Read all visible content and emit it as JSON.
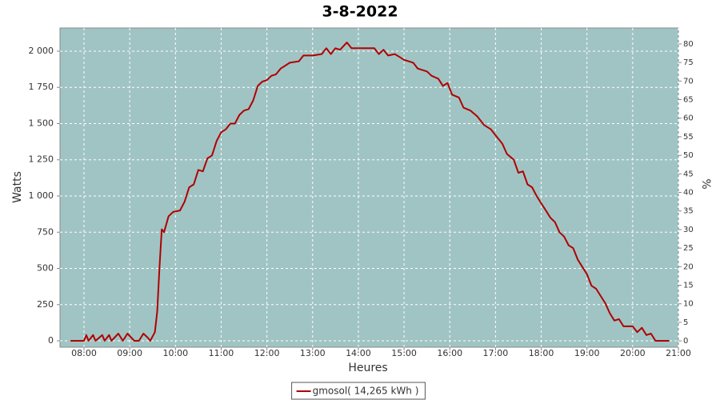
{
  "chart_data": {
    "type": "line",
    "title": "3-8-2022",
    "x_label": "Heures",
    "y_label": "Watts",
    "y2_label": "%",
    "x": [
      7.7,
      7.85,
      8.0,
      8.05,
      8.1,
      8.2,
      8.25,
      8.4,
      8.45,
      8.55,
      8.6,
      8.75,
      8.85,
      8.95,
      9.1,
      9.2,
      9.3,
      9.4,
      9.45,
      9.5,
      9.55,
      9.6,
      9.65,
      9.7,
      9.75,
      9.85,
      9.95,
      10.1,
      10.2,
      10.3,
      10.4,
      10.5,
      10.6,
      10.7,
      10.8,
      10.9,
      11.0,
      11.1,
      11.2,
      11.3,
      11.4,
      11.5,
      11.6,
      11.7,
      11.8,
      11.9,
      12.0,
      12.1,
      12.2,
      12.3,
      12.4,
      12.5,
      12.7,
      12.8,
      13.0,
      13.2,
      13.3,
      13.4,
      13.5,
      13.6,
      13.75,
      13.85,
      14.0,
      14.2,
      14.35,
      14.45,
      14.55,
      14.65,
      14.8,
      14.9,
      15.0,
      15.2,
      15.3,
      15.5,
      15.6,
      15.75,
      15.85,
      15.95,
      16.05,
      16.2,
      16.3,
      16.45,
      16.6,
      16.75,
      16.9,
      17.0,
      17.15,
      17.25,
      17.4,
      17.5,
      17.6,
      17.7,
      17.8,
      17.9,
      18.0,
      18.1,
      18.2,
      18.3,
      18.4,
      18.5,
      18.6,
      18.7,
      18.8,
      18.9,
      19.0,
      19.1,
      19.2,
      19.3,
      19.4,
      19.5,
      19.6,
      19.7,
      19.8,
      20.0,
      20.1,
      20.2,
      20.3,
      20.4,
      20.5,
      20.8
    ],
    "series": [
      {
        "name": "gmosol( 14,265 kWh )",
        "color": "#b00000",
        "values": [
          0,
          0,
          0,
          40,
          0,
          40,
          0,
          40,
          0,
          40,
          0,
          50,
          0,
          50,
          0,
          0,
          50,
          20,
          0,
          30,
          60,
          200,
          500,
          770,
          750,
          860,
          890,
          900,
          960,
          1060,
          1080,
          1180,
          1170,
          1260,
          1280,
          1380,
          1440,
          1460,
          1500,
          1500,
          1560,
          1590,
          1600,
          1660,
          1760,
          1790,
          1800,
          1830,
          1840,
          1880,
          1900,
          1920,
          1930,
          1970,
          1970,
          1980,
          2020,
          1980,
          2020,
          2010,
          2060,
          2020,
          2020,
          2020,
          2020,
          1980,
          2010,
          1970,
          1980,
          1960,
          1940,
          1920,
          1880,
          1860,
          1830,
          1810,
          1760,
          1780,
          1700,
          1680,
          1610,
          1590,
          1550,
          1490,
          1460,
          1420,
          1360,
          1290,
          1250,
          1160,
          1170,
          1080,
          1060,
          1000,
          950,
          900,
          850,
          820,
          750,
          720,
          660,
          640,
          560,
          510,
          460,
          380,
          360,
          310,
          260,
          190,
          140,
          150,
          100,
          100,
          60,
          90,
          40,
          50,
          0,
          0
        ]
      }
    ],
    "xlim": [
      7.475,
      21
    ],
    "xticks": [
      {
        "value": 8,
        "label": "08:00"
      },
      {
        "value": 9,
        "label": "09:00"
      },
      {
        "value": 10,
        "label": "10:00"
      },
      {
        "value": 11,
        "label": "11:00"
      },
      {
        "value": 12,
        "label": "12:00"
      },
      {
        "value": 13,
        "label": "13:00"
      },
      {
        "value": 14,
        "label": "14:00"
      },
      {
        "value": 15,
        "label": "15:00"
      },
      {
        "value": 16,
        "label": "16:00"
      },
      {
        "value": 17,
        "label": "17:00"
      },
      {
        "value": 18,
        "label": "18:00"
      },
      {
        "value": 19,
        "label": "19:00"
      },
      {
        "value": 20,
        "label": "20:00"
      },
      {
        "value": 21,
        "label": "21:00"
      }
    ],
    "ylim": [
      -44,
      2160
    ],
    "yticks": [
      0,
      250,
      500,
      750,
      {
        "value": 1000,
        "label": "1 000"
      },
      {
        "value": 1250,
        "label": "1 250"
      },
      {
        "value": 1500,
        "label": "1 500"
      },
      {
        "value": 1750,
        "label": "1 750"
      },
      {
        "value": 2000,
        "label": "2 000"
      }
    ],
    "y2lim": [
      -1.7,
      84.3
    ],
    "y2ticks": [
      0,
      5,
      10,
      15,
      20,
      25,
      30,
      35,
      40,
      45,
      50,
      55,
      60,
      65,
      70,
      75,
      80
    ],
    "grid": true,
    "legend": "bottom",
    "background": "#a0c4c4"
  }
}
